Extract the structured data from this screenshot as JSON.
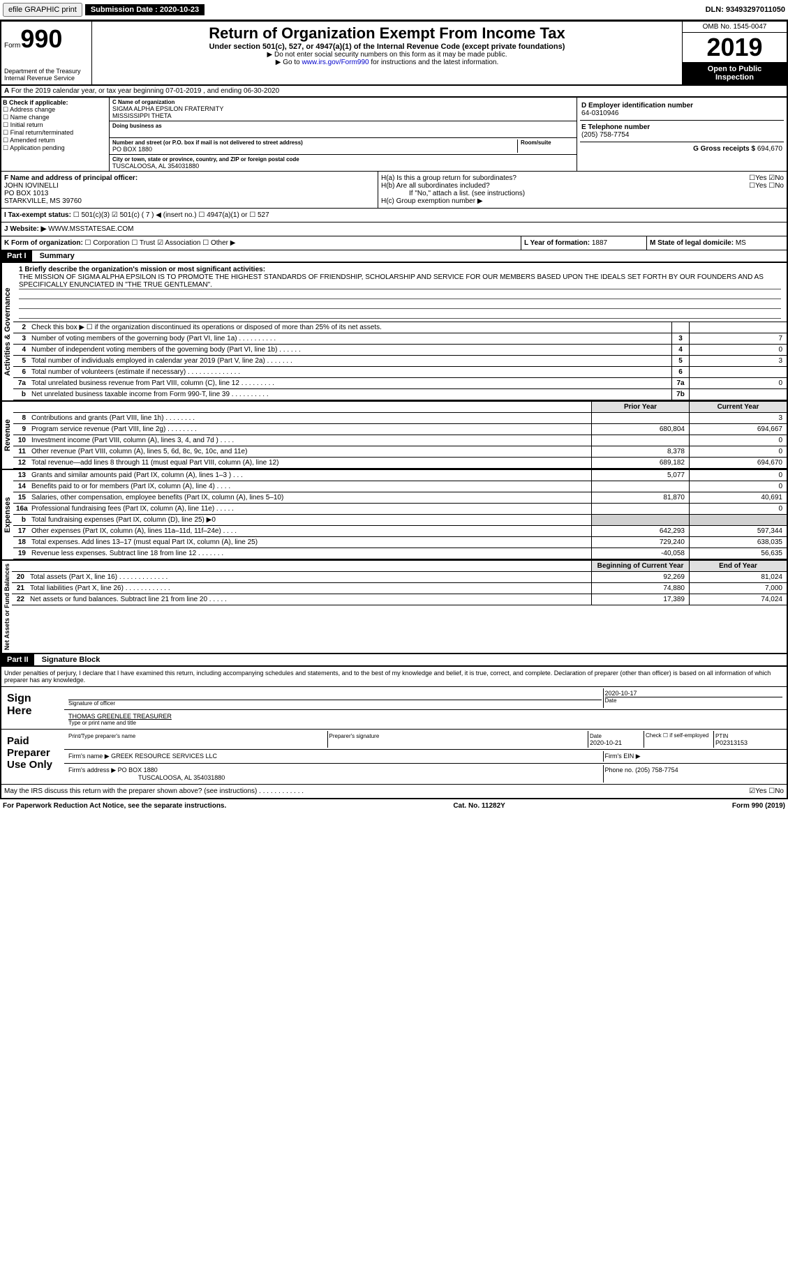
{
  "topbar": {
    "efile": "efile GRAPHIC print",
    "submission_label": "Submission Date :",
    "submission_date": "2020-10-23",
    "dln_label": "DLN:",
    "dln": "93493297011050"
  },
  "header": {
    "form_prefix": "Form",
    "form_num": "990",
    "dept": "Department of the Treasury\nInternal Revenue Service",
    "title": "Return of Organization Exempt From Income Tax",
    "sub1": "Under section 501(c), 527, or 4947(a)(1) of the Internal Revenue Code (except private foundations)",
    "sub2": "▶ Do not enter social security numbers on this form as it may be made public.",
    "sub3_pre": "▶ Go to ",
    "sub3_link": "www.irs.gov/Form990",
    "sub3_post": " for instructions and the latest information.",
    "omb": "OMB No. 1545-0047",
    "year": "2019",
    "open": "Open to Public\nInspection"
  },
  "line_a": "For the 2019 calendar year, or tax year beginning 07-01-2019    , and ending 06-30-2020",
  "box_b": {
    "title": "B Check if applicable:",
    "items": [
      "Address change",
      "Name change",
      "Initial return",
      "Final return/terminated",
      "Amended return",
      "Application pending"
    ]
  },
  "box_c": {
    "name_label": "C Name of organization",
    "name": "SIGMA ALPHA EPSILON FRATERNITY\nMISSISSIPPI THETA",
    "dba_label": "Doing business as",
    "addr_label": "Number and street (or P.O. box if mail is not delivered to street address)",
    "addr": "PO BOX 1880",
    "room_label": "Room/suite",
    "city_label": "City or town, state or province, country, and ZIP or foreign postal code",
    "city": "TUSCALOOSA, AL  354031880"
  },
  "box_d": {
    "label": "D Employer identification number",
    "val": "64-0310946"
  },
  "box_e": {
    "label": "E Telephone number",
    "val": "(205) 758-7754"
  },
  "box_g": {
    "label": "G Gross receipts $",
    "val": "694,670"
  },
  "box_f": {
    "label": "F  Name and address of principal officer:",
    "name": "JOHN IOVINELLI",
    "addr1": "PO BOX 1013",
    "addr2": "STARKVILLE, MS  39760"
  },
  "box_h": {
    "a": "H(a)  Is this a group return for subordinates?",
    "b": "H(b)  Are all subordinates included?",
    "b_note": "If \"No,\" attach a list. (see instructions)",
    "c": "H(c)  Group exemption number ▶",
    "yes": "Yes",
    "no": "No"
  },
  "tax_exempt": {
    "label": "I  Tax-exempt status:",
    "c3": "501(c)(3)",
    "c7": "501(c) ( 7 ) ◀ (insert no.)",
    "a1": "4947(a)(1) or",
    "s527": "527"
  },
  "website": {
    "label": "J  Website: ▶",
    "val": "WWW.MSSTATESAE.COM"
  },
  "line_k": {
    "label": "K Form of organization:",
    "corp": "Corporation",
    "trust": "Trust",
    "assoc": "Association",
    "other": "Other ▶"
  },
  "line_l": {
    "label": "L Year of formation:",
    "val": "1887"
  },
  "line_m": {
    "label": "M State of legal domicile:",
    "val": "MS"
  },
  "part1": {
    "label": "Part I",
    "title": "Summary"
  },
  "mission": {
    "label": "1  Briefly describe the organization's mission or most significant activities:",
    "text": "THE MISSION OF SIGMA ALPHA EPSILON IS TO PROMOTE THE HIGHEST STANDARDS OF FRIENDSHIP, SCHOLARSHIP AND SERVICE FOR OUR MEMBERS BASED UPON THE IDEALS SET FORTH BY OUR FOUNDERS AND AS SPECIFICALLY ENUNCIATED IN \"THE TRUE GENTLEMAN\"."
  },
  "lines_gov": [
    {
      "n": "2",
      "d": "Check this box ▶ ☐  if the organization discontinued its operations or disposed of more than 25% of its net assets.",
      "box": "",
      "v": ""
    },
    {
      "n": "3",
      "d": "Number of voting members of the governing body (Part VI, line 1a)  .   .   .   .   .   .   .   .   .   .",
      "box": "3",
      "v": "7"
    },
    {
      "n": "4",
      "d": "Number of independent voting members of the governing body (Part VI, line 1b)  .   .   .   .   .   .",
      "box": "4",
      "v": "0"
    },
    {
      "n": "5",
      "d": "Total number of individuals employed in calendar year 2019 (Part V, line 2a)  .   .   .   .   .   .   .",
      "box": "5",
      "v": "3"
    },
    {
      "n": "6",
      "d": "Total number of volunteers (estimate if necessary)   .   .   .   .   .   .   .   .   .   .   .   .   .   .",
      "box": "6",
      "v": ""
    },
    {
      "n": "7a",
      "d": "Total unrelated business revenue from Part VIII, column (C), line 12  .   .   .   .   .   .   .   .   .",
      "box": "7a",
      "v": "0"
    },
    {
      "n": "b",
      "d": "Net unrelated business taxable income from Form 990-T, line 39   .   .   .   .   .   .   .   .   .   .",
      "box": "7b",
      "v": ""
    }
  ],
  "col_headers": {
    "prior": "Prior Year",
    "current": "Current Year"
  },
  "lines_rev": [
    {
      "n": "8",
      "d": "Contributions and grants (Part VIII, line 1h)   .   .   .   .   .   .   .   .",
      "p": "",
      "c": "3"
    },
    {
      "n": "9",
      "d": "Program service revenue (Part VIII, line 2g)   .   .   .   .   .   .   .   .",
      "p": "680,804",
      "c": "694,667"
    },
    {
      "n": "10",
      "d": "Investment income (Part VIII, column (A), lines 3, 4, and 7d )   .   .   .   .",
      "p": "",
      "c": "0"
    },
    {
      "n": "11",
      "d": "Other revenue (Part VIII, column (A), lines 5, 6d, 8c, 9c, 10c, and 11e)",
      "p": "8,378",
      "c": "0"
    },
    {
      "n": "12",
      "d": "Total revenue—add lines 8 through 11 (must equal Part VIII, column (A), line 12)",
      "p": "689,182",
      "c": "694,670"
    }
  ],
  "lines_exp": [
    {
      "n": "13",
      "d": "Grants and similar amounts paid (Part IX, column (A), lines 1–3 )  .   .   .",
      "p": "5,077",
      "c": "0"
    },
    {
      "n": "14",
      "d": "Benefits paid to or for members (Part IX, column (A), line 4)  .   .   .   .",
      "p": "",
      "c": "0"
    },
    {
      "n": "15",
      "d": "Salaries, other compensation, employee benefits (Part IX, column (A), lines 5–10)",
      "p": "81,870",
      "c": "40,691"
    },
    {
      "n": "16a",
      "d": "Professional fundraising fees (Part IX, column (A), line 11e)  .   .   .   .   .",
      "p": "",
      "c": "0"
    },
    {
      "n": "b",
      "d": "Total fundraising expenses (Part IX, column (D), line 25) ▶0",
      "p": "__shade__",
      "c": "__shade__"
    },
    {
      "n": "17",
      "d": "Other expenses (Part IX, column (A), lines 11a–11d, 11f–24e)  .   .   .   .",
      "p": "642,293",
      "c": "597,344"
    },
    {
      "n": "18",
      "d": "Total expenses. Add lines 13–17 (must equal Part IX, column (A), line 25)",
      "p": "729,240",
      "c": "638,035"
    },
    {
      "n": "19",
      "d": "Revenue less expenses. Subtract line 18 from line 12 .   .   .   .   .   .   .",
      "p": "-40,058",
      "c": "56,635"
    }
  ],
  "net_headers": {
    "begin": "Beginning of Current Year",
    "end": "End of Year"
  },
  "lines_net": [
    {
      "n": "20",
      "d": "Total assets (Part X, line 16)  .   .   .   .   .   .   .   .   .   .   .   .   .",
      "p": "92,269",
      "c": "81,024"
    },
    {
      "n": "21",
      "d": "Total liabilities (Part X, line 26)  .   .   .   .   .   .   .   .   .   .   .   .",
      "p": "74,880",
      "c": "7,000"
    },
    {
      "n": "22",
      "d": "Net assets or fund balances. Subtract line 21 from line 20  .   .   .   .   .",
      "p": "17,389",
      "c": "74,024"
    }
  ],
  "part2": {
    "label": "Part II",
    "title": "Signature Block"
  },
  "perjury": "Under penalties of perjury, I declare that I have examined this return, including accompanying schedules and statements, and to the best of my knowledge and belief, it is true, correct, and complete. Declaration of preparer (other than officer) is based on all information of which preparer has any knowledge.",
  "sign": {
    "here": "Sign Here",
    "sig_label": "Signature of officer",
    "date": "2020-10-17",
    "date_label": "Date",
    "name": "THOMAS GREENLEE  TREASURER",
    "name_label": "Type or print name and title"
  },
  "paid": {
    "label": "Paid Preparer Use Only",
    "print_label": "Print/Type preparer's name",
    "sig_label": "Preparer's signature",
    "date_label": "Date",
    "date": "2020-10-21",
    "check_label": "Check ☐ if self-employed",
    "ptin_label": "PTIN",
    "ptin": "P02313153",
    "firm_label": "Firm's name    ▶",
    "firm": "GREEK RESOURCE SERVICES LLC",
    "ein_label": "Firm's EIN ▶",
    "addr_label": "Firm's address ▶",
    "addr1": "PO BOX 1880",
    "addr2": "TUSCALOOSA, AL  354031880",
    "phone_label": "Phone no.",
    "phone": "(205) 758-7754"
  },
  "discuss": "May the IRS discuss this return with the preparer shown above? (see instructions)   .   .   .   .   .   .   .   .   .   .   .   .",
  "footer": {
    "left": "For Paperwork Reduction Act Notice, see the separate instructions.",
    "mid": "Cat. No. 11282Y",
    "right_pre": "Form ",
    "right_b": "990",
    "right_post": " (2019)"
  },
  "vert": {
    "gov": "Activities & Governance",
    "rev": "Revenue",
    "exp": "Expenses",
    "net": "Net Assets or Fund Balances"
  }
}
